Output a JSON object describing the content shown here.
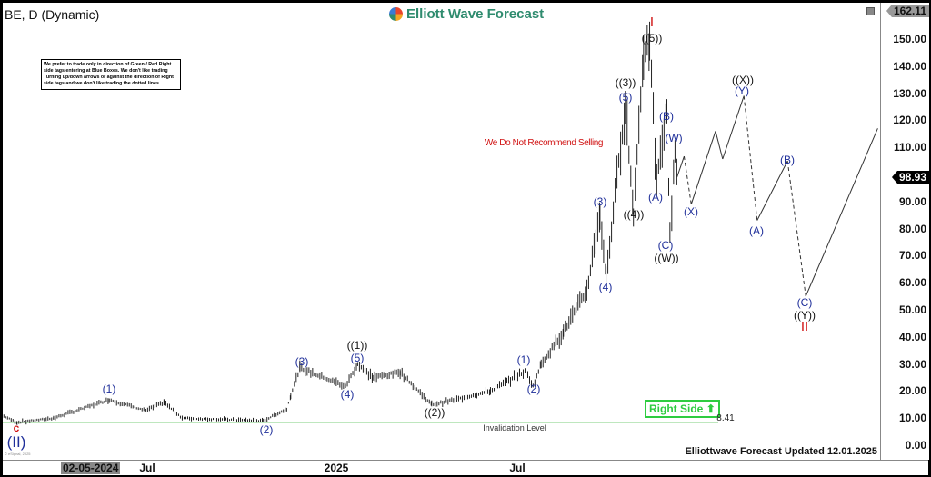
{
  "header": {
    "symbol_title": "BE, D (Dynamic)",
    "brand": "Elliott Wave Forecast"
  },
  "disclaimer": "We prefer to trade only in direction of Green / Red Right side tags entering at Blue Boxes. We don't like trading Turning up/down arrows or against the direction of Right side tags and we don't like trading the dotted lines.",
  "notes": {
    "no_sell": "We Do Not Recommend Selling",
    "invalidation": "Invalidation Level",
    "invalidation_value": "8.41",
    "right_side": "Right Side",
    "updated": "Elliottwave Forecast Updated 12.01.2025",
    "copyright": "© eSignal, 2025"
  },
  "colors": {
    "wave_blue": "#1f2f9a",
    "wave_black": "#111111",
    "wave_red": "#d01010",
    "right_side_green": "#2ecc40",
    "invalidation_line": "#7dcf7d",
    "brand_green": "#2e8b6e"
  },
  "price_axis": {
    "ticks": [
      "150.00",
      "140.00",
      "130.00",
      "120.00",
      "110.00",
      "100.00",
      "90.00",
      "80.00",
      "70.00",
      "60.00",
      "50.00",
      "40.00",
      "30.00",
      "20.00",
      "10.00",
      "0.00"
    ],
    "high_tag": "162.11",
    "last_tag": "98.93"
  },
  "time_axis": {
    "cursor_label": "02-05-2024",
    "labels": [
      "Jul",
      "2025",
      "Jul"
    ]
  },
  "waves": {
    "top_I": "I",
    "w5_outer": "((5))",
    "w3_outer": "((3))",
    "w5_inner": "(5)",
    "wB": "(B)",
    "wW": "(W)",
    "w3_inner": "(3)",
    "w4_outer": "((4))",
    "wA": "(A)",
    "wX": "(X)",
    "wC": "(C)",
    "wW_outer": "((W))",
    "wX_outer": "((X))",
    "wY": "(Y)",
    "proj_B": "(B)",
    "proj_A": "(A)",
    "proj_C": "(C)",
    "wY_outer": "((Y))",
    "bottom_II": "II",
    "w4_inner": "(4)",
    "w1_b": "(1)",
    "w2_b": "(2)",
    "w1_outer": "((1))",
    "w5_a": "(5)",
    "w3_a": "(3)",
    "w4_a": "(4)",
    "w1_a": "(1)",
    "w2_a": "(2)",
    "w2_outer": "((2))",
    "c_low": "c",
    "II_low": "(II)"
  },
  "chart_data": {
    "type": "line",
    "symbol": "BE",
    "interval": "D",
    "ylim": [
      0,
      162.11
    ],
    "invalidation_level": 8.41,
    "last_price": 98.93,
    "price_swings": [
      [
        "2024-02-08",
        10.7
      ],
      [
        "2024-02-21",
        8.4
      ],
      [
        "2024-03-28",
        10
      ],
      [
        "2024-05-22",
        16.8
      ],
      [
        "2024-06-27",
        12.8
      ],
      [
        "2024-07-15",
        15.8
      ],
      [
        "2024-08-02",
        10
      ],
      [
        "2024-10-21",
        9
      ],
      [
        "2024-11-13",
        13.4
      ],
      [
        "2024-11-17",
        18.5
      ],
      [
        "2024-11-26",
        28.5
      ],
      [
        "2025-01-10",
        21.8
      ],
      [
        "2025-01-22",
        30
      ],
      [
        "2025-02-06",
        25
      ],
      [
        "2025-03-05",
        27
      ],
      [
        "2025-04-05",
        15
      ],
      [
        "2025-04-28",
        16.8
      ],
      [
        "2025-06-02",
        20
      ],
      [
        "2025-07-07",
        27.5
      ],
      [
        "2025-07-14",
        21.8
      ],
      [
        "2025-07-22",
        30
      ],
      [
        "2025-08-13",
        42
      ],
      [
        "2025-09-05",
        57
      ],
      [
        "2025-09-18",
        85.6
      ],
      [
        "2025-09-24",
        62
      ],
      [
        "2025-10-13",
        126
      ],
      [
        "2025-10-21",
        85.6
      ],
      [
        "2025-10-31",
        146
      ],
      [
        "2025-11-06",
        147.6
      ],
      [
        "2025-11-13",
        97
      ],
      [
        "2025-11-23",
        124
      ],
      [
        "2025-11-26",
        77
      ],
      [
        "2025-12-01",
        110
      ],
      [
        "2025-12-03",
        99
      ]
    ],
    "projection": [
      {
        "date": "2025-12-03",
        "price": 99,
        "dashed": false
      },
      {
        "date": "2025-12-10",
        "price": 106.7,
        "dashed": true
      },
      {
        "date": "2025-12-17",
        "price": 89,
        "dashed": false
      },
      {
        "date": "2026-01-10",
        "price": 116,
        "dashed": false
      },
      {
        "date": "2026-01-17",
        "price": 105.7,
        "dashed": false
      },
      {
        "date": "2026-02-07",
        "price": 129,
        "dashed": true
      },
      {
        "date": "2026-02-20",
        "price": 83,
        "dashed": false
      },
      {
        "date": "2026-03-22",
        "price": 105,
        "dashed": true
      },
      {
        "date": "2026-04-09",
        "price": 55,
        "dashed": false
      },
      {
        "date": "2026-06-19",
        "price": 117
      }
    ]
  }
}
